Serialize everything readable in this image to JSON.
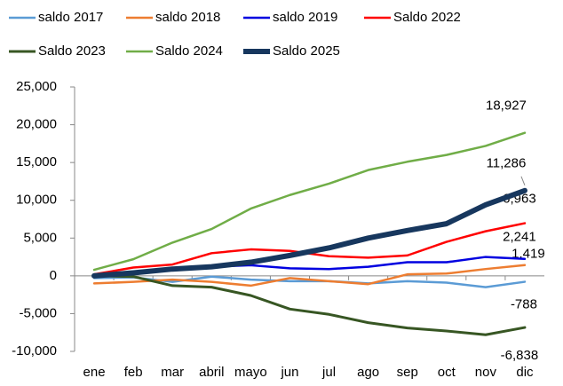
{
  "chart_data": {
    "type": "line",
    "categories": [
      "ene",
      "feb",
      "mar",
      "abril",
      "mayo",
      "jun",
      "jul",
      "ago",
      "sep",
      "oct",
      "nov",
      "dic"
    ],
    "ylim": [
      -10000,
      25000
    ],
    "yticks": [
      {
        "value": -10000,
        "label": "-10,000"
      },
      {
        "value": -5000,
        "label": "-5,000"
      },
      0,
      {
        "value": 5000,
        "label": "5,000"
      },
      {
        "value": 10000,
        "label": "10,000"
      },
      {
        "value": 15000,
        "label": "15,000"
      },
      {
        "value": 20000,
        "label": "20,000"
      },
      {
        "value": 25000,
        "label": "25,000"
      }
    ],
    "series": [
      {
        "name": "saldo 2017",
        "color": "#5b9bd5",
        "width": 2.5,
        "values": [
          -300,
          -200,
          -800,
          -100,
          -500,
          -700,
          -700,
          -1000,
          -700,
          -900,
          -1500,
          -788
        ],
        "value_labels": [
          null,
          null,
          null,
          null,
          null,
          null,
          null,
          null,
          null,
          null,
          null,
          "-788"
        ]
      },
      {
        "name": "saldo 2018",
        "color": "#ed7d31",
        "width": 2.5,
        "values": [
          -1000,
          -800,
          -500,
          -800,
          -1300,
          -300,
          -700,
          -1100,
          200,
          300,
          900,
          1419
        ],
        "value_labels": [
          null,
          null,
          null,
          null,
          null,
          null,
          null,
          null,
          null,
          null,
          null,
          "1,419"
        ]
      },
      {
        "name": "saldo 2019",
        "color": "#0000e0",
        "width": 2.5,
        "values": [
          100,
          300,
          1000,
          1200,
          1400,
          1000,
          900,
          1200,
          1800,
          1800,
          2500,
          2241
        ],
        "value_labels": [
          null,
          null,
          null,
          null,
          null,
          null,
          null,
          null,
          null,
          null,
          null,
          "2,241"
        ]
      },
      {
        "name": "Saldo 2022",
        "color": "#ff0000",
        "width": 2.5,
        "values": [
          200,
          1100,
          1500,
          3000,
          3500,
          3300,
          2600,
          2400,
          2700,
          4500,
          5900,
          6963
        ],
        "value_labels": [
          null,
          null,
          null,
          null,
          null,
          null,
          null,
          null,
          null,
          null,
          null,
          "6,963"
        ]
      },
      {
        "name": "Saldo 2023",
        "color": "#375623",
        "width": 3,
        "values": [
          0,
          -100,
          -1300,
          -1500,
          -2600,
          -4400,
          -5100,
          -6200,
          -6900,
          -7300,
          -7800,
          -6838
        ],
        "value_labels": [
          null,
          null,
          null,
          null,
          null,
          null,
          null,
          null,
          null,
          null,
          null,
          "-6,838"
        ]
      },
      {
        "name": "Saldo 2024",
        "color": "#70ad47",
        "width": 2.5,
        "values": [
          800,
          2200,
          4400,
          6200,
          8900,
          10700,
          12200,
          14000,
          15100,
          16000,
          17200,
          18927
        ],
        "value_labels": [
          null,
          null,
          null,
          null,
          null,
          null,
          null,
          null,
          null,
          null,
          null,
          "18,927"
        ]
      },
      {
        "name": "Saldo 2025",
        "color": "#17375e",
        "width": 6,
        "values": [
          0,
          400,
          900,
          1200,
          1800,
          2700,
          3700,
          5000,
          6000,
          6900,
          9400,
          11286
        ],
        "value_labels": [
          null,
          null,
          null,
          null,
          null,
          null,
          null,
          null,
          null,
          null,
          null,
          "11,286"
        ]
      }
    ]
  }
}
